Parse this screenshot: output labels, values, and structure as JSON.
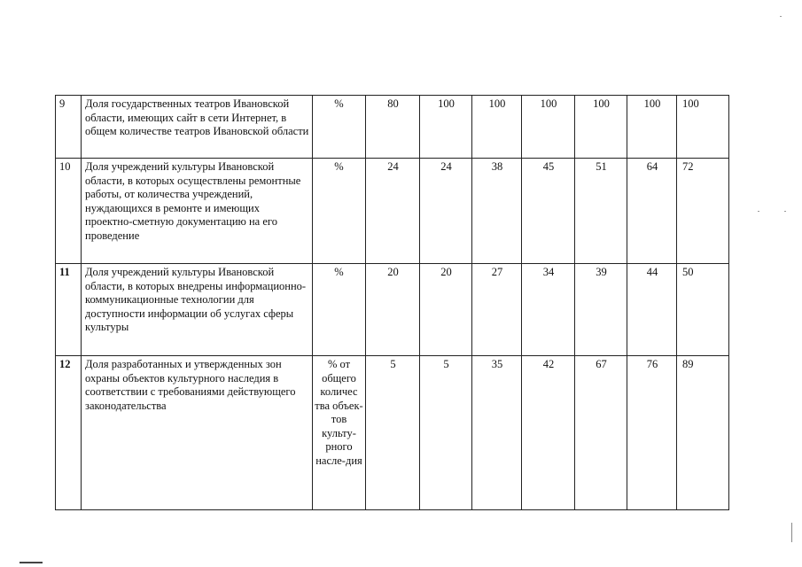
{
  "rows": [
    {
      "num": "9",
      "desc": "Доля государственных театров Ивановской области, имеющих сайт в сети Интернет, в общем количестве театров Ивановской области",
      "unit": "%",
      "values": [
        "80",
        "100",
        "100",
        "100",
        "100",
        "100",
        "100"
      ]
    },
    {
      "num": "10",
      "desc": "Доля учреждений культуры Ивановской области, в которых осуществлены ремонтные работы, от количества учреждений, нуждающихся в ремонте и имеющих проектно-сметную документацию на его проведение",
      "unit": "%",
      "values": [
        "24",
        "24",
        "38",
        "45",
        "51",
        "64",
        "72"
      ]
    },
    {
      "num": "11",
      "desc": "Доля учреждений культуры Ивановской области, в которых внедрены информационно-коммуникационные технологии для доступности информации об услугах сферы культуры",
      "unit": "%",
      "values": [
        "20",
        "20",
        "27",
        "34",
        "39",
        "44",
        "50"
      ]
    },
    {
      "num": "12",
      "desc": "Доля разработанных и утвержденных зон охраны объектов культурного наследия в соответствии с требованиями действующего законодательства",
      "unit": "% от общего количес тва объек-тов культу-рного насле-дия",
      "values": [
        "5",
        "5",
        "35",
        "42",
        "67",
        "76",
        "89"
      ]
    }
  ]
}
